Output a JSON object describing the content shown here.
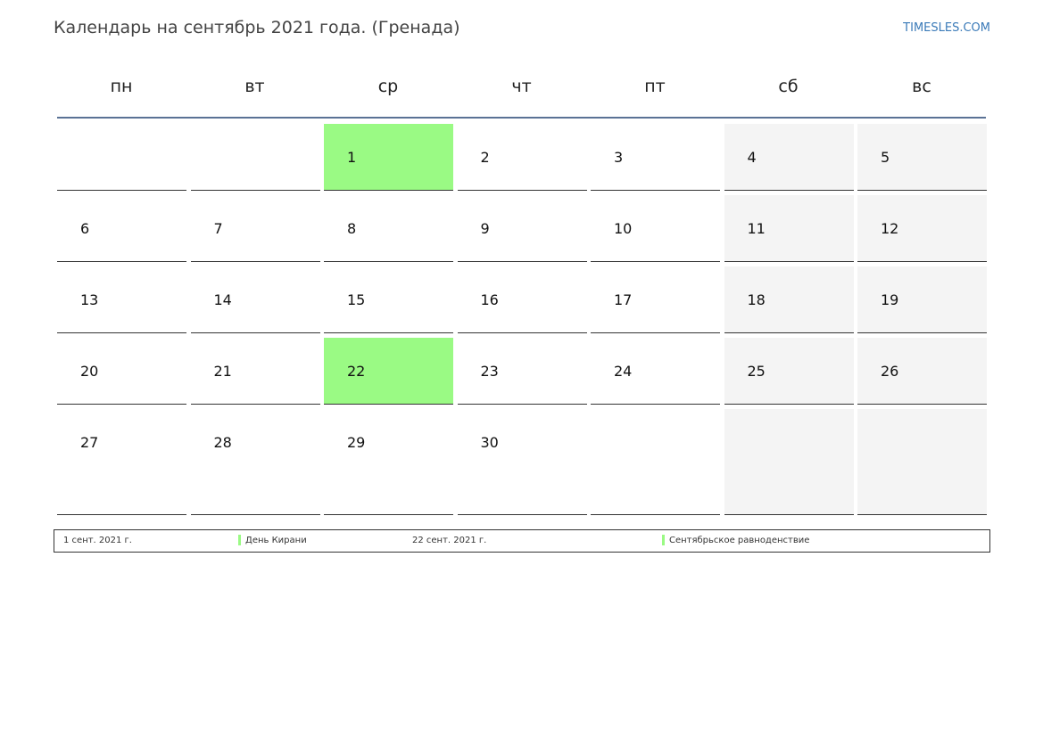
{
  "header": {
    "title": "Календарь на сентябрь 2021 года. (Гренада)",
    "site": "TIMESLES.COM"
  },
  "weekdays": [
    "пн",
    "вт",
    "ср",
    "чт",
    "пт",
    "сб",
    "вс"
  ],
  "weeks": [
    [
      null,
      null,
      "1",
      "2",
      "3",
      "4",
      "5"
    ],
    [
      "6",
      "7",
      "8",
      "9",
      "10",
      "11",
      "12"
    ],
    [
      "13",
      "14",
      "15",
      "16",
      "17",
      "18",
      "19"
    ],
    [
      "20",
      "21",
      "22",
      "23",
      "24",
      "25",
      "26"
    ],
    [
      "27",
      "28",
      "29",
      "30",
      null,
      null,
      null
    ]
  ],
  "highlighted_days": [
    "1",
    "22"
  ],
  "highlight_color": "#9afa84",
  "holidays": [
    {
      "date": "1 сент. 2021 г.",
      "name": "День Кирани"
    },
    {
      "date": "22 сент. 2021 г.",
      "name": "Сентябрьское равноденствие"
    }
  ]
}
